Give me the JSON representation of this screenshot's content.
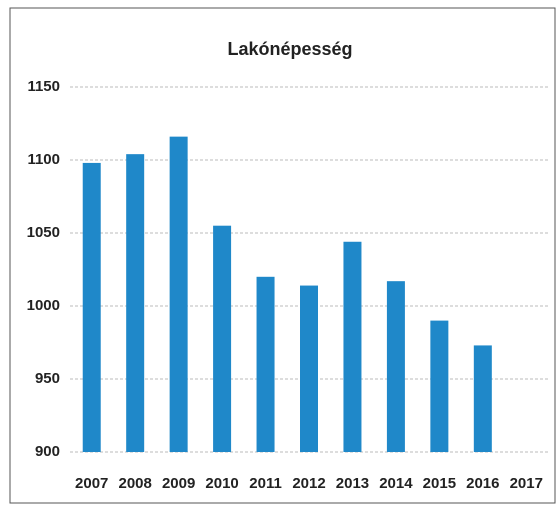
{
  "chart_data": {
    "type": "bar",
    "title": "Lakónépesség",
    "categories": [
      "2007",
      "2008",
      "2009",
      "2010",
      "2011",
      "2012",
      "2013",
      "2014",
      "2015",
      "2016",
      "2017"
    ],
    "values": [
      1098,
      1104,
      1116,
      1055,
      1020,
      1014,
      1044,
      1017,
      990,
      973,
      null
    ],
    "color": "#1f88c9",
    "ylim": [
      900,
      1150
    ],
    "yticks": [
      900,
      950,
      1000,
      1050,
      1100,
      1150
    ],
    "grid": true
  }
}
